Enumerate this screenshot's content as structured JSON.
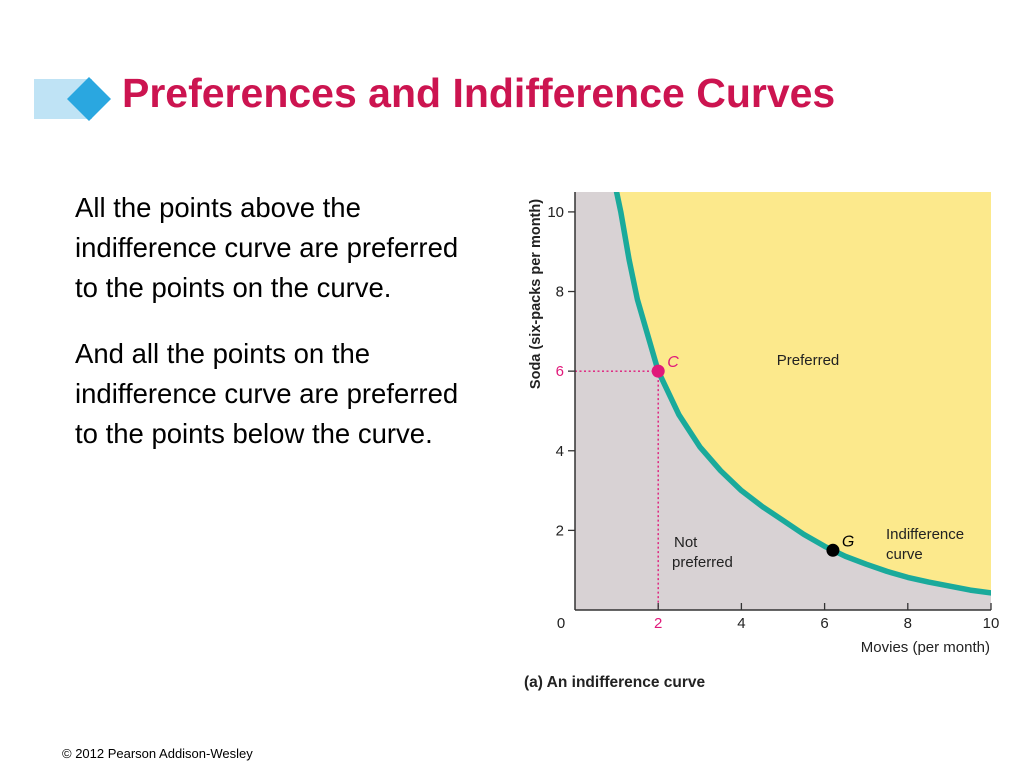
{
  "slide": {
    "title": "Preferences and Indifference Curves",
    "paragraphs": [
      "All the points above the indifference curve are preferred to the points on the curve.",
      "And all the points on the indifference curve are preferred to the points below the curve."
    ],
    "footer": "© 2012 Pearson Addison-Wesley"
  },
  "colors": {
    "title": "#cc1450",
    "preferred_region": "#fce98c",
    "not_preferred_region": "#d8d2d4",
    "curve": "#1aaa9b",
    "point_c": "#e0197a",
    "point_g": "#000000",
    "guide_lines": "#e0197a",
    "title_deco_light": "#bfe3f5",
    "title_deco_dark": "#2aa7e0"
  },
  "chart_data": {
    "type": "line",
    "caption": "(a) An indifference curve",
    "xlabel": "Movies (per month)",
    "ylabel": "Soda (six-packs per month)",
    "xlim": [
      0,
      10
    ],
    "ylim": [
      0,
      10.5
    ],
    "x_ticks": [
      0,
      2,
      4,
      6,
      8,
      10
    ],
    "y_ticks": [
      2,
      4,
      6,
      8,
      10
    ],
    "x_origin_label": "0",
    "highlight_tick": "2",
    "grid": false,
    "curve": {
      "name": "Indifference curve",
      "x": [
        1.0,
        1.1,
        1.3,
        1.5,
        2.0,
        2.5,
        3.0,
        3.5,
        4.0,
        4.5,
        5.0,
        5.5,
        6.0,
        6.5,
        7.0,
        7.5,
        8.0,
        8.5,
        9.0,
        9.5,
        10.0
      ],
      "y": [
        10.5,
        10.0,
        8.8,
        7.8,
        6.0,
        4.9,
        4.1,
        3.5,
        3.0,
        2.6,
        2.25,
        1.9,
        1.6,
        1.35,
        1.15,
        0.97,
        0.82,
        0.7,
        0.6,
        0.5,
        0.43
      ]
    },
    "points": [
      {
        "label": "C",
        "x": 2,
        "y": 6,
        "color": "#e0197a"
      },
      {
        "label": "G",
        "x": 6.2,
        "y": 1.5,
        "color": "#000000"
      }
    ],
    "region_labels": {
      "preferred": "Preferred",
      "not_preferred_line1": "Not",
      "not_preferred_line2": "preferred",
      "curve_line1": "Indifference",
      "curve_line2": "curve"
    }
  }
}
